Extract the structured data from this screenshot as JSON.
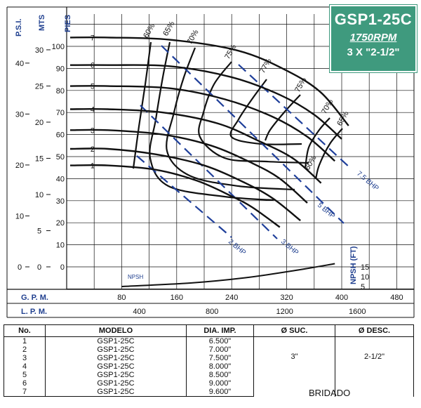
{
  "title": {
    "model": "GSP1-25C",
    "rpm": "1750RPM",
    "size": "3 X \"2-1/2\""
  },
  "axes": {
    "psi_label": "P.S.I.",
    "mts_label": "MTS",
    "pies_label": "PIES",
    "gpm_label": "G. P. M.",
    "lpm_label": "L. P. M.",
    "npsh_label": "NPSH (FT)",
    "npsh_curve_label": "NPSH",
    "psi_ticks": [
      "40",
      "30",
      "20",
      "10",
      "0"
    ],
    "mts_ticks": [
      "30",
      "25",
      "20",
      "15",
      "10",
      "5",
      "0"
    ],
    "npsh_ticks": [
      "15",
      "10",
      "5"
    ],
    "lpm_ticks": [
      "400",
      "800",
      "1200",
      "1600"
    ]
  },
  "chart_data": {
    "type": "line",
    "title": "GSP1-25C",
    "xlabel": "G. P. M.",
    "ylabel": "PIES",
    "xlim": [
      40,
      520
    ],
    "ylim": [
      -10,
      110
    ],
    "xticks": [
      80,
      160,
      240,
      320,
      400,
      480
    ],
    "yticks": [
      0,
      10,
      20,
      30,
      40,
      50,
      60,
      70,
      80,
      90,
      100
    ],
    "series": [
      {
        "name": "1",
        "x": [
          0,
          60,
          130,
          190,
          240,
          270,
          310
        ],
        "y": [
          46,
          46,
          44,
          39,
          32,
          27,
          18
        ]
      },
      {
        "name": "2",
        "x": [
          0,
          60,
          130,
          200,
          260,
          300,
          340
        ],
        "y": [
          53.5,
          53.5,
          51,
          46,
          38,
          31,
          21
        ]
      },
      {
        "name": "3",
        "x": [
          0,
          60,
          140,
          210,
          270,
          310,
          350
        ],
        "y": [
          62,
          62,
          60,
          55,
          47,
          40,
          29
        ]
      },
      {
        "name": "4",
        "x": [
          0,
          60,
          140,
          220,
          280,
          330,
          370
        ],
        "y": [
          71.5,
          71.5,
          70,
          65,
          57,
          49,
          38
        ]
      },
      {
        "name": "5",
        "x": [
          0,
          60,
          150,
          230,
          300,
          350,
          390
        ],
        "y": [
          82,
          82,
          81,
          76,
          68,
          59,
          48
        ]
      },
      {
        "name": "6",
        "x": [
          0,
          60,
          150,
          240,
          310,
          360,
          400
        ],
        "y": [
          91.5,
          91.5,
          91,
          86,
          78,
          69,
          58
        ]
      },
      {
        "name": "7",
        "x": [
          0,
          60,
          150,
          250,
          320,
          370,
          410
        ],
        "y": [
          104,
          104,
          103,
          98,
          89,
          79,
          64
        ]
      }
    ],
    "efficiency_labels": [
      "60%",
      "65%",
      "70%",
      "75%",
      "77%",
      "75%",
      "70%",
      "65%",
      "60%"
    ],
    "bhp_labels": [
      "2 BHP",
      "3 BHP",
      "5 BHP",
      "7.5 BHP"
    ],
    "npsh_curve": {
      "x": [
        80,
        180,
        260,
        330,
        390
      ],
      "y_npsh_ft": [
        0,
        2,
        5,
        9,
        13
      ]
    }
  },
  "table": {
    "headers": [
      "No.",
      "MODELO",
      "DIA. IMP.",
      "Ø SUC.",
      "Ø DESC."
    ],
    "rows": [
      {
        "no": "1",
        "modelo": "GSP1-25C",
        "dia": "6.500\""
      },
      {
        "no": "2",
        "modelo": "GSP1-25C",
        "dia": "7.000\""
      },
      {
        "no": "3",
        "modelo": "GSP1-25C",
        "dia": "7.500\""
      },
      {
        "no": "4",
        "modelo": "GSP1-25C",
        "dia": "8.000\""
      },
      {
        "no": "5",
        "modelo": "GSP1-25C",
        "dia": "8.500\""
      },
      {
        "no": "6",
        "modelo": "GSP1-25C",
        "dia": "9.000\""
      },
      {
        "no": "7",
        "modelo": "GSP1-25C",
        "dia": "9.600\""
      }
    ],
    "suc": "3\"",
    "desc": "2-1/2\"",
    "note": "BRIDADO"
  }
}
